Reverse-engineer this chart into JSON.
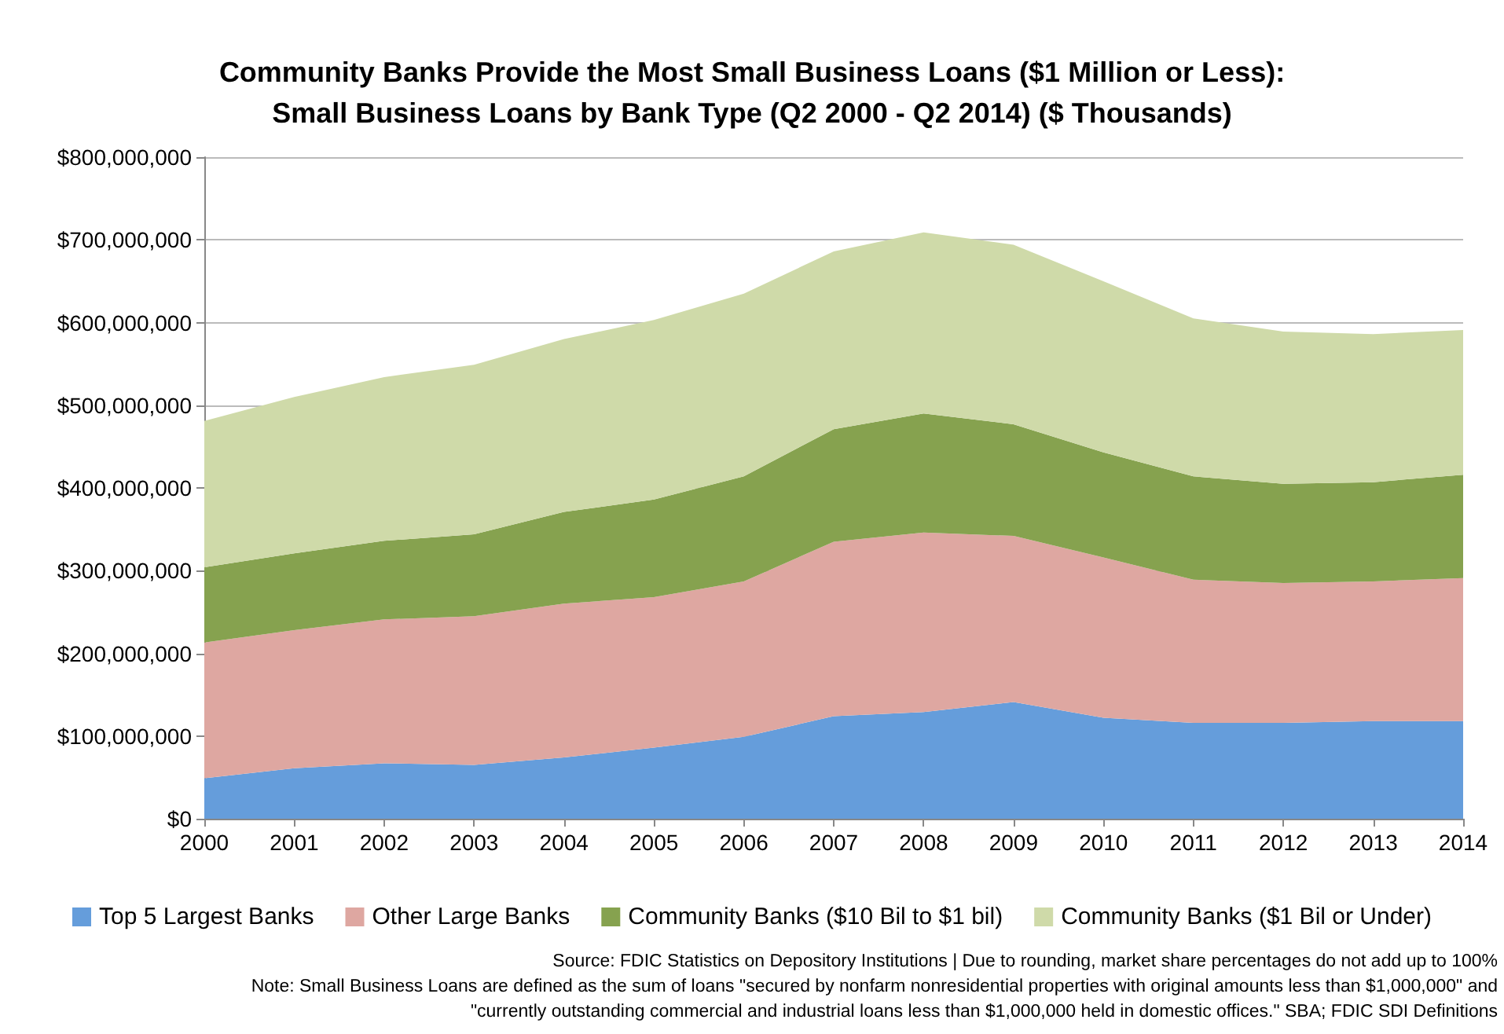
{
  "chart_data": {
    "type": "area",
    "stacked": true,
    "title": "Community Banks Provide the Most Small Business Loans ($1 Million or Less):\nSmall Business Loans by Bank Type (Q2 2000 - Q2 2014) ($ Thousands)",
    "categories": [
      "2000",
      "2001",
      "2002",
      "2003",
      "2004",
      "2005",
      "2006",
      "2007",
      "2008",
      "2009",
      "2010",
      "2011",
      "2012",
      "2013",
      "2014"
    ],
    "series": [
      {
        "name": "Top 5 Largest Banks",
        "color": "#659ddb",
        "values": [
          49000000,
          61000000,
          67000000,
          65000000,
          74000000,
          86000000,
          99000000,
          124000000,
          129000000,
          141000000,
          122000000,
          116000000,
          116000000,
          118000000,
          118000000
        ]
      },
      {
        "name": "Other Large Banks",
        "color": "#dea7a1",
        "values": [
          164000000,
          167000000,
          174000000,
          180000000,
          186000000,
          182000000,
          188000000,
          211000000,
          217000000,
          201000000,
          194000000,
          173000000,
          169000000,
          169000000,
          173000000
        ]
      },
      {
        "name": "Community Banks ($10 Bil to $1 bil)",
        "color": "#86a24f",
        "values": [
          91000000,
          93000000,
          95000000,
          99000000,
          111000000,
          118000000,
          127000000,
          136000000,
          144000000,
          135000000,
          127000000,
          125000000,
          120000000,
          120000000,
          125000000
        ]
      },
      {
        "name": "Community Banks ($1 Bil or Under)",
        "color": "#cfdaa9",
        "values": [
          177000000,
          189000000,
          198000000,
          205000000,
          209000000,
          217000000,
          221000000,
          215000000,
          219000000,
          217000000,
          207000000,
          191000000,
          184000000,
          179000000,
          175000000
        ]
      }
    ],
    "ylim": [
      0,
      800000000
    ],
    "yticks": [
      {
        "value": 0,
        "label": "$0"
      },
      {
        "value": 100000000,
        "label": "$100,000,000"
      },
      {
        "value": 200000000,
        "label": "$200,000,000"
      },
      {
        "value": 300000000,
        "label": "$300,000,000"
      },
      {
        "value": 400000000,
        "label": "$400,000,000"
      },
      {
        "value": 500000000,
        "label": "$500,000,000"
      },
      {
        "value": 600000000,
        "label": "$600,000,000"
      },
      {
        "value": 700000000,
        "label": "$700,000,000"
      },
      {
        "value": 800000000,
        "label": "$800,000,000"
      }
    ],
    "grid": "y",
    "legend": "bottom",
    "annotations": [
      "Source: FDIC Statistics on Depository Institutions | Due to rounding, market share percentages do not add up to 100%",
      "Note: Small Business Loans are defined as the sum of loans \"secured by nonfarm nonresidential properties with original amounts less than $1,000,000\" and",
      "\"currently outstanding commercial and industrial loans less than $1,000,000 held in domestic offices.\" SBA; FDIC SDI Definitions"
    ]
  }
}
